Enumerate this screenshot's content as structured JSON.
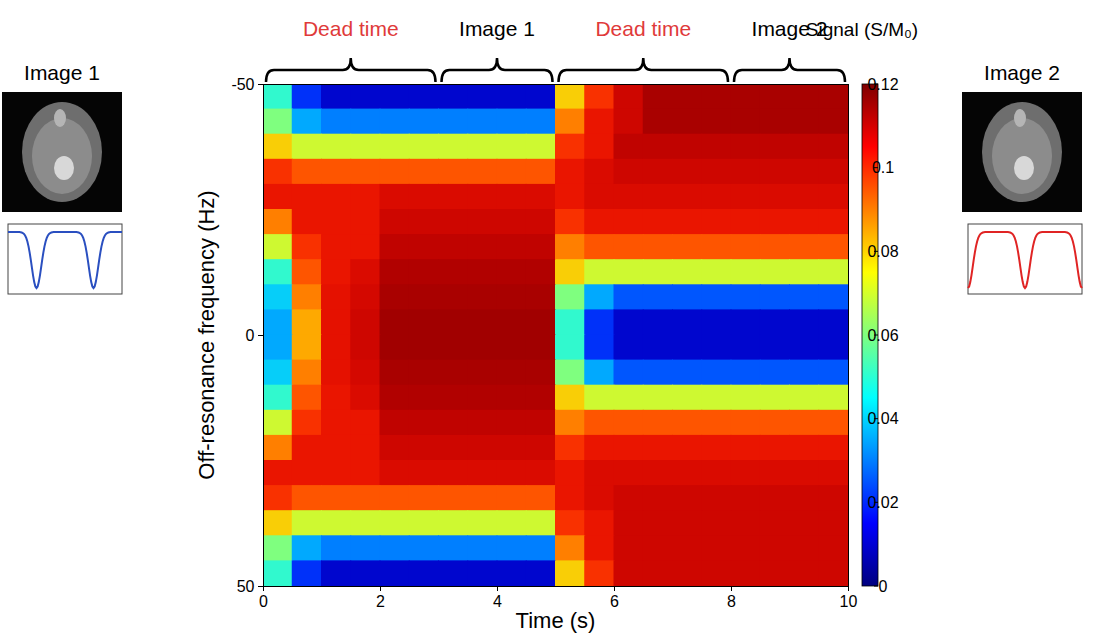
{
  "chart_data": {
    "type": "heatmap",
    "xlabel": "Time (s)",
    "ylabel": "Off-resonance frequency (Hz)",
    "xlim": [
      0,
      10
    ],
    "ylim": [
      -50,
      50
    ],
    "xticks": [
      0,
      2,
      4,
      6,
      8,
      10
    ],
    "yticks": [
      -50,
      0,
      50
    ],
    "x_edges": [
      0,
      0.5,
      1,
      1.5,
      2,
      2.5,
      3,
      3.5,
      4,
      4.5,
      5,
      5.5,
      6,
      6.5,
      7,
      7.5,
      8,
      8.5,
      9,
      9.5,
      10
    ],
    "y_edges": [
      -50,
      -45,
      -40,
      -35,
      -30,
      -25,
      -20,
      -15,
      -10,
      -5,
      0,
      5,
      10,
      15,
      20,
      25,
      30,
      35,
      40,
      45,
      50
    ],
    "values": [
      [
        0.05,
        0.02,
        0.01,
        0.01,
        0.01,
        0.01,
        0.01,
        0.01,
        0.01,
        0.01,
        0.08,
        0.1,
        0.11,
        0.115,
        0.115,
        0.115,
        0.115,
        0.115,
        0.115,
        0.115
      ],
      [
        0.06,
        0.035,
        0.03,
        0.03,
        0.03,
        0.03,
        0.03,
        0.03,
        0.03,
        0.03,
        0.09,
        0.105,
        0.11,
        0.115,
        0.115,
        0.115,
        0.115,
        0.115,
        0.115,
        0.115
      ],
      [
        0.08,
        0.07,
        0.07,
        0.07,
        0.07,
        0.07,
        0.07,
        0.07,
        0.07,
        0.07,
        0.1,
        0.105,
        0.112,
        0.112,
        0.112,
        0.112,
        0.112,
        0.112,
        0.112,
        0.112
      ],
      [
        0.1,
        0.095,
        0.095,
        0.095,
        0.095,
        0.095,
        0.095,
        0.095,
        0.095,
        0.095,
        0.105,
        0.108,
        0.11,
        0.11,
        0.11,
        0.11,
        0.11,
        0.11,
        0.11,
        0.11
      ],
      [
        0.105,
        0.105,
        0.105,
        0.105,
        0.108,
        0.108,
        0.108,
        0.108,
        0.108,
        0.108,
        0.105,
        0.108,
        0.108,
        0.108,
        0.108,
        0.108,
        0.108,
        0.108,
        0.108,
        0.108
      ],
      [
        0.09,
        0.105,
        0.105,
        0.105,
        0.11,
        0.11,
        0.11,
        0.11,
        0.11,
        0.11,
        0.1,
        0.105,
        0.105,
        0.105,
        0.105,
        0.105,
        0.105,
        0.105,
        0.105,
        0.105
      ],
      [
        0.07,
        0.1,
        0.105,
        0.105,
        0.112,
        0.112,
        0.112,
        0.112,
        0.112,
        0.112,
        0.09,
        0.095,
        0.095,
        0.095,
        0.095,
        0.095,
        0.095,
        0.095,
        0.095,
        0.095
      ],
      [
        0.05,
        0.095,
        0.105,
        0.108,
        0.114,
        0.114,
        0.114,
        0.114,
        0.114,
        0.114,
        0.08,
        0.07,
        0.07,
        0.07,
        0.07,
        0.07,
        0.07,
        0.07,
        0.07,
        0.07
      ],
      [
        0.04,
        0.09,
        0.106,
        0.109,
        0.115,
        0.115,
        0.115,
        0.115,
        0.115,
        0.115,
        0.06,
        0.035,
        0.025,
        0.025,
        0.025,
        0.025,
        0.025,
        0.025,
        0.025,
        0.025
      ],
      [
        0.035,
        0.085,
        0.106,
        0.11,
        0.116,
        0.116,
        0.116,
        0.116,
        0.116,
        0.116,
        0.05,
        0.02,
        0.01,
        0.01,
        0.01,
        0.01,
        0.01,
        0.01,
        0.01,
        0.01
      ],
      [
        0.035,
        0.085,
        0.106,
        0.11,
        0.116,
        0.116,
        0.116,
        0.116,
        0.116,
        0.116,
        0.05,
        0.02,
        0.01,
        0.01,
        0.01,
        0.01,
        0.01,
        0.01,
        0.01,
        0.01
      ],
      [
        0.04,
        0.09,
        0.106,
        0.109,
        0.115,
        0.115,
        0.115,
        0.115,
        0.115,
        0.115,
        0.06,
        0.035,
        0.025,
        0.025,
        0.025,
        0.025,
        0.025,
        0.025,
        0.025,
        0.025
      ],
      [
        0.05,
        0.095,
        0.105,
        0.108,
        0.114,
        0.114,
        0.114,
        0.114,
        0.114,
        0.114,
        0.08,
        0.07,
        0.07,
        0.07,
        0.07,
        0.07,
        0.07,
        0.07,
        0.07,
        0.07
      ],
      [
        0.07,
        0.1,
        0.105,
        0.105,
        0.112,
        0.112,
        0.112,
        0.112,
        0.112,
        0.112,
        0.09,
        0.095,
        0.095,
        0.095,
        0.095,
        0.095,
        0.095,
        0.095,
        0.095,
        0.095
      ],
      [
        0.09,
        0.105,
        0.105,
        0.105,
        0.11,
        0.11,
        0.11,
        0.11,
        0.11,
        0.11,
        0.1,
        0.105,
        0.105,
        0.105,
        0.105,
        0.105,
        0.105,
        0.105,
        0.105,
        0.105
      ],
      [
        0.105,
        0.105,
        0.105,
        0.105,
        0.108,
        0.108,
        0.108,
        0.108,
        0.108,
        0.108,
        0.105,
        0.108,
        0.108,
        0.108,
        0.108,
        0.108,
        0.108,
        0.108,
        0.108,
        0.108
      ],
      [
        0.1,
        0.095,
        0.095,
        0.095,
        0.095,
        0.095,
        0.095,
        0.095,
        0.095,
        0.095,
        0.105,
        0.108,
        0.11,
        0.11,
        0.11,
        0.11,
        0.11,
        0.11,
        0.11,
        0.11
      ],
      [
        0.08,
        0.07,
        0.07,
        0.07,
        0.07,
        0.07,
        0.07,
        0.07,
        0.07,
        0.07,
        0.1,
        0.105,
        0.11,
        0.11,
        0.11,
        0.11,
        0.11,
        0.11,
        0.11,
        0.11
      ],
      [
        0.06,
        0.035,
        0.03,
        0.03,
        0.03,
        0.03,
        0.03,
        0.03,
        0.03,
        0.03,
        0.09,
        0.105,
        0.11,
        0.11,
        0.11,
        0.11,
        0.11,
        0.11,
        0.11,
        0.11
      ],
      [
        0.05,
        0.02,
        0.01,
        0.01,
        0.01,
        0.01,
        0.01,
        0.01,
        0.01,
        0.01,
        0.08,
        0.1,
        0.11,
        0.11,
        0.11,
        0.11,
        0.11,
        0.11,
        0.11,
        0.11
      ]
    ],
    "colorbar": {
      "label": "Signal (S/M₀)",
      "lim": [
        0,
        0.12
      ],
      "ticks": [
        0,
        0.02,
        0.04,
        0.06,
        0.08,
        0.1,
        0.12
      ]
    },
    "annotations": [
      {
        "label": "Dead time",
        "start": 0,
        "end": 3,
        "color": "#e03a3a"
      },
      {
        "label": "Image 1",
        "start": 3,
        "end": 5,
        "color": "#000000"
      },
      {
        "label": "Dead time",
        "start": 5,
        "end": 8,
        "color": "#e03a3a"
      },
      {
        "label": "Image 2",
        "start": 8,
        "end": 10,
        "color": "#000000"
      }
    ],
    "images": [
      {
        "label": "Image 1",
        "color": "#2a4fc0"
      },
      {
        "label": "Image 2",
        "color": "#e02424"
      }
    ]
  }
}
